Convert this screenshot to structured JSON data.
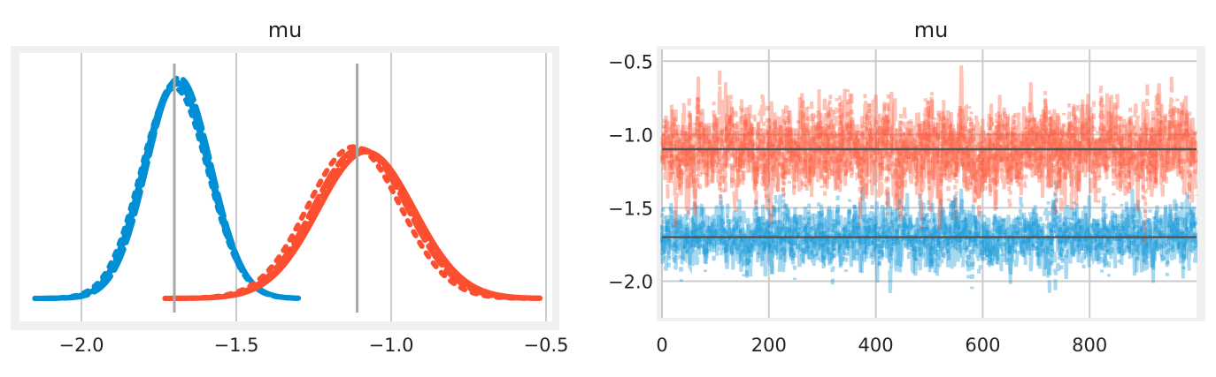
{
  "chart_data": [
    {
      "type": "line",
      "title": "mu",
      "xlabel": "",
      "ylabel": "",
      "xlim": [
        -2.2,
        -0.48
      ],
      "xticks": [
        -2.0,
        -1.5,
        -1.0,
        -0.5
      ],
      "xtick_labels": [
        "−2.0",
        "−1.5",
        "−1.0",
        "−0.5"
      ],
      "grid": true,
      "legend": "none",
      "colors": {
        "blue": "#008fd5",
        "red": "#fc4f30",
        "mean_line": "#a9a9a9"
      },
      "series": [
        {
          "color": "#008fd5",
          "linestyle": "solid",
          "mean": -1.69,
          "sd": 0.106,
          "x_range": [
            -2.15,
            -1.3
          ]
        },
        {
          "color": "#008fd5",
          "linestyle": "dashed",
          "mean": -1.685,
          "sd": 0.103,
          "x_range": [
            -2.15,
            -1.3
          ]
        },
        {
          "color": "#008fd5",
          "linestyle": "dotted",
          "mean": -1.7,
          "sd": 0.108,
          "x_range": [
            -2.15,
            -1.3
          ]
        },
        {
          "color": "#008fd5",
          "linestyle": "dashdot",
          "mean": -1.695,
          "sd": 0.105,
          "x_range": [
            -2.15,
            -1.3
          ]
        },
        {
          "color": "#fc4f30",
          "linestyle": "solid",
          "mean": -1.08,
          "sd": 0.155,
          "x_range": [
            -1.73,
            -0.52
          ]
        },
        {
          "color": "#fc4f30",
          "linestyle": "dashed",
          "mean": -1.1,
          "sd": 0.152,
          "x_range": [
            -1.73,
            -0.52
          ]
        },
        {
          "color": "#fc4f30",
          "linestyle": "dotted",
          "mean": -1.12,
          "sd": 0.15,
          "x_range": [
            -1.73,
            -0.52
          ]
        },
        {
          "color": "#fc4f30",
          "linestyle": "dashdot",
          "mean": -1.09,
          "sd": 0.154,
          "x_range": [
            -1.73,
            -0.52
          ]
        }
      ],
      "vlines": [
        -1.7,
        -1.11
      ]
    },
    {
      "type": "line",
      "title": "mu",
      "xlabel": "",
      "ylabel": "",
      "xlim": [
        0,
        1000
      ],
      "ylim": [
        -2.25,
        -0.42
      ],
      "xticks": [
        0,
        200,
        400,
        600,
        800
      ],
      "xtick_labels": [
        "0",
        "200",
        "400",
        "600",
        "800"
      ],
      "yticks": [
        -0.5,
        -1.0,
        -1.5,
        -2.0
      ],
      "ytick_labels": [
        "−0.5",
        "−1.0",
        "−1.5",
        "−2.0"
      ],
      "grid": true,
      "legend": "none",
      "draws": 1000,
      "colors": {
        "blue": "#008fd5",
        "red": "#fc4f30",
        "mean_line": "#555555"
      },
      "series": [
        {
          "color": "#fc4f30",
          "mean": -1.1,
          "sd": 0.155,
          "min": -1.75,
          "max": -0.5
        },
        {
          "color": "#008fd5",
          "mean": -1.7,
          "sd": 0.105,
          "min": -2.17,
          "max": -1.22
        }
      ],
      "hlines": [
        -1.1,
        -1.7
      ]
    }
  ]
}
